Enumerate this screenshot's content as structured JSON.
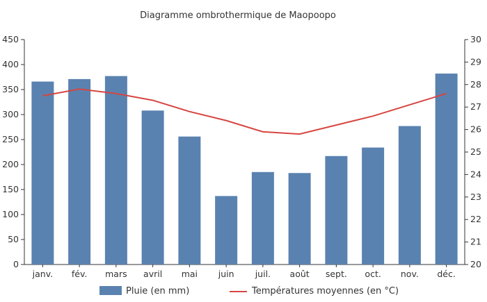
{
  "chart_data": {
    "type": "bar",
    "title": "Diagramme ombrothermique de Maopoopo",
    "categories": [
      "janv.",
      "fév.",
      "mars",
      "avril",
      "mai",
      "juin",
      "juil.",
      "août",
      "sept.",
      "oct.",
      "nov.",
      "déc."
    ],
    "series": [
      {
        "name": "Pluie (en mm)",
        "type": "bar",
        "axis": "left",
        "color": "#5a82b0",
        "values": [
          366,
          371,
          377,
          308,
          256,
          137,
          185,
          183,
          217,
          234,
          277,
          382
        ]
      },
      {
        "name": "Températures moyennes (en °C)",
        "type": "line",
        "axis": "right",
        "color": "#d64541",
        "values": [
          27.5,
          27.8,
          27.6,
          27.3,
          26.8,
          26.4,
          25.9,
          25.8,
          26.2,
          26.6,
          27.1,
          27.6
        ]
      }
    ],
    "y_left": {
      "min": 0,
      "max": 450,
      "ticks": [
        0,
        50,
        100,
        150,
        200,
        250,
        300,
        350,
        400,
        450
      ]
    },
    "y_right": {
      "min": 20,
      "max": 30,
      "ticks": [
        20,
        21,
        22,
        23,
        24,
        25,
        26,
        27,
        28,
        29,
        30
      ]
    },
    "grid": false,
    "legend_position": "bottom"
  }
}
